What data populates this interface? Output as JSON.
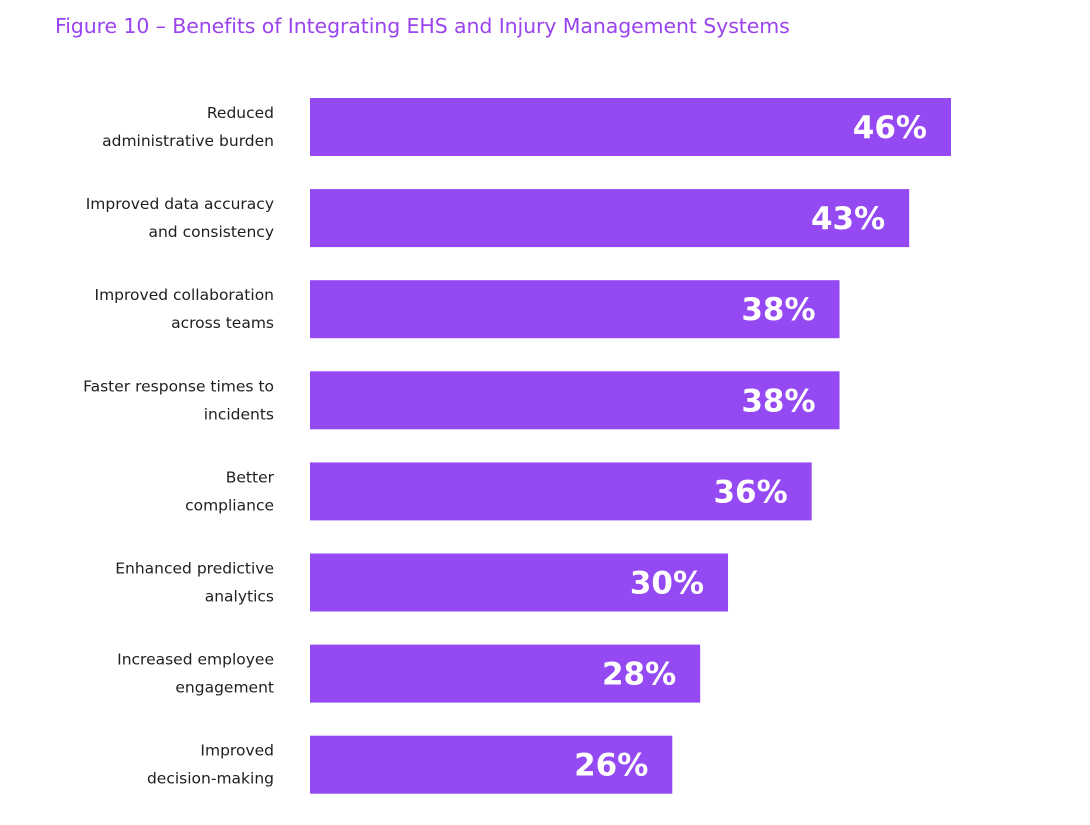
{
  "title": "Figure 10 – Benefits of Integrating EHS and Injury Management Systems",
  "colors": {
    "bar": "#9449f2",
    "title": "#9a44ef",
    "label": "#1f1f1f",
    "value_text": "#ffffff"
  },
  "chart_data": {
    "type": "bar",
    "orientation": "horizontal",
    "title": "Figure 10 – Benefits of Integrating EHS and Injury Management Systems",
    "categories": [
      [
        "Reduced",
        "administrative burden"
      ],
      [
        "Improved data accuracy",
        "and consistency"
      ],
      [
        "Improved collaboration",
        "across teams"
      ],
      [
        "Faster response times to",
        "incidents"
      ],
      [
        "Better",
        "compliance"
      ],
      [
        "Enhanced predictive",
        "analytics"
      ],
      [
        "Increased employee",
        "engagement"
      ],
      [
        "Improved",
        "decision-making"
      ]
    ],
    "values": [
      46,
      43,
      38,
      38,
      36,
      30,
      28,
      26
    ],
    "value_labels": [
      "46%",
      "43%",
      "38%",
      "38%",
      "36%",
      "30%",
      "28%",
      "26%"
    ],
    "unit": "%",
    "xlim": [
      0,
      46
    ],
    "grid": false,
    "legend": "none"
  }
}
